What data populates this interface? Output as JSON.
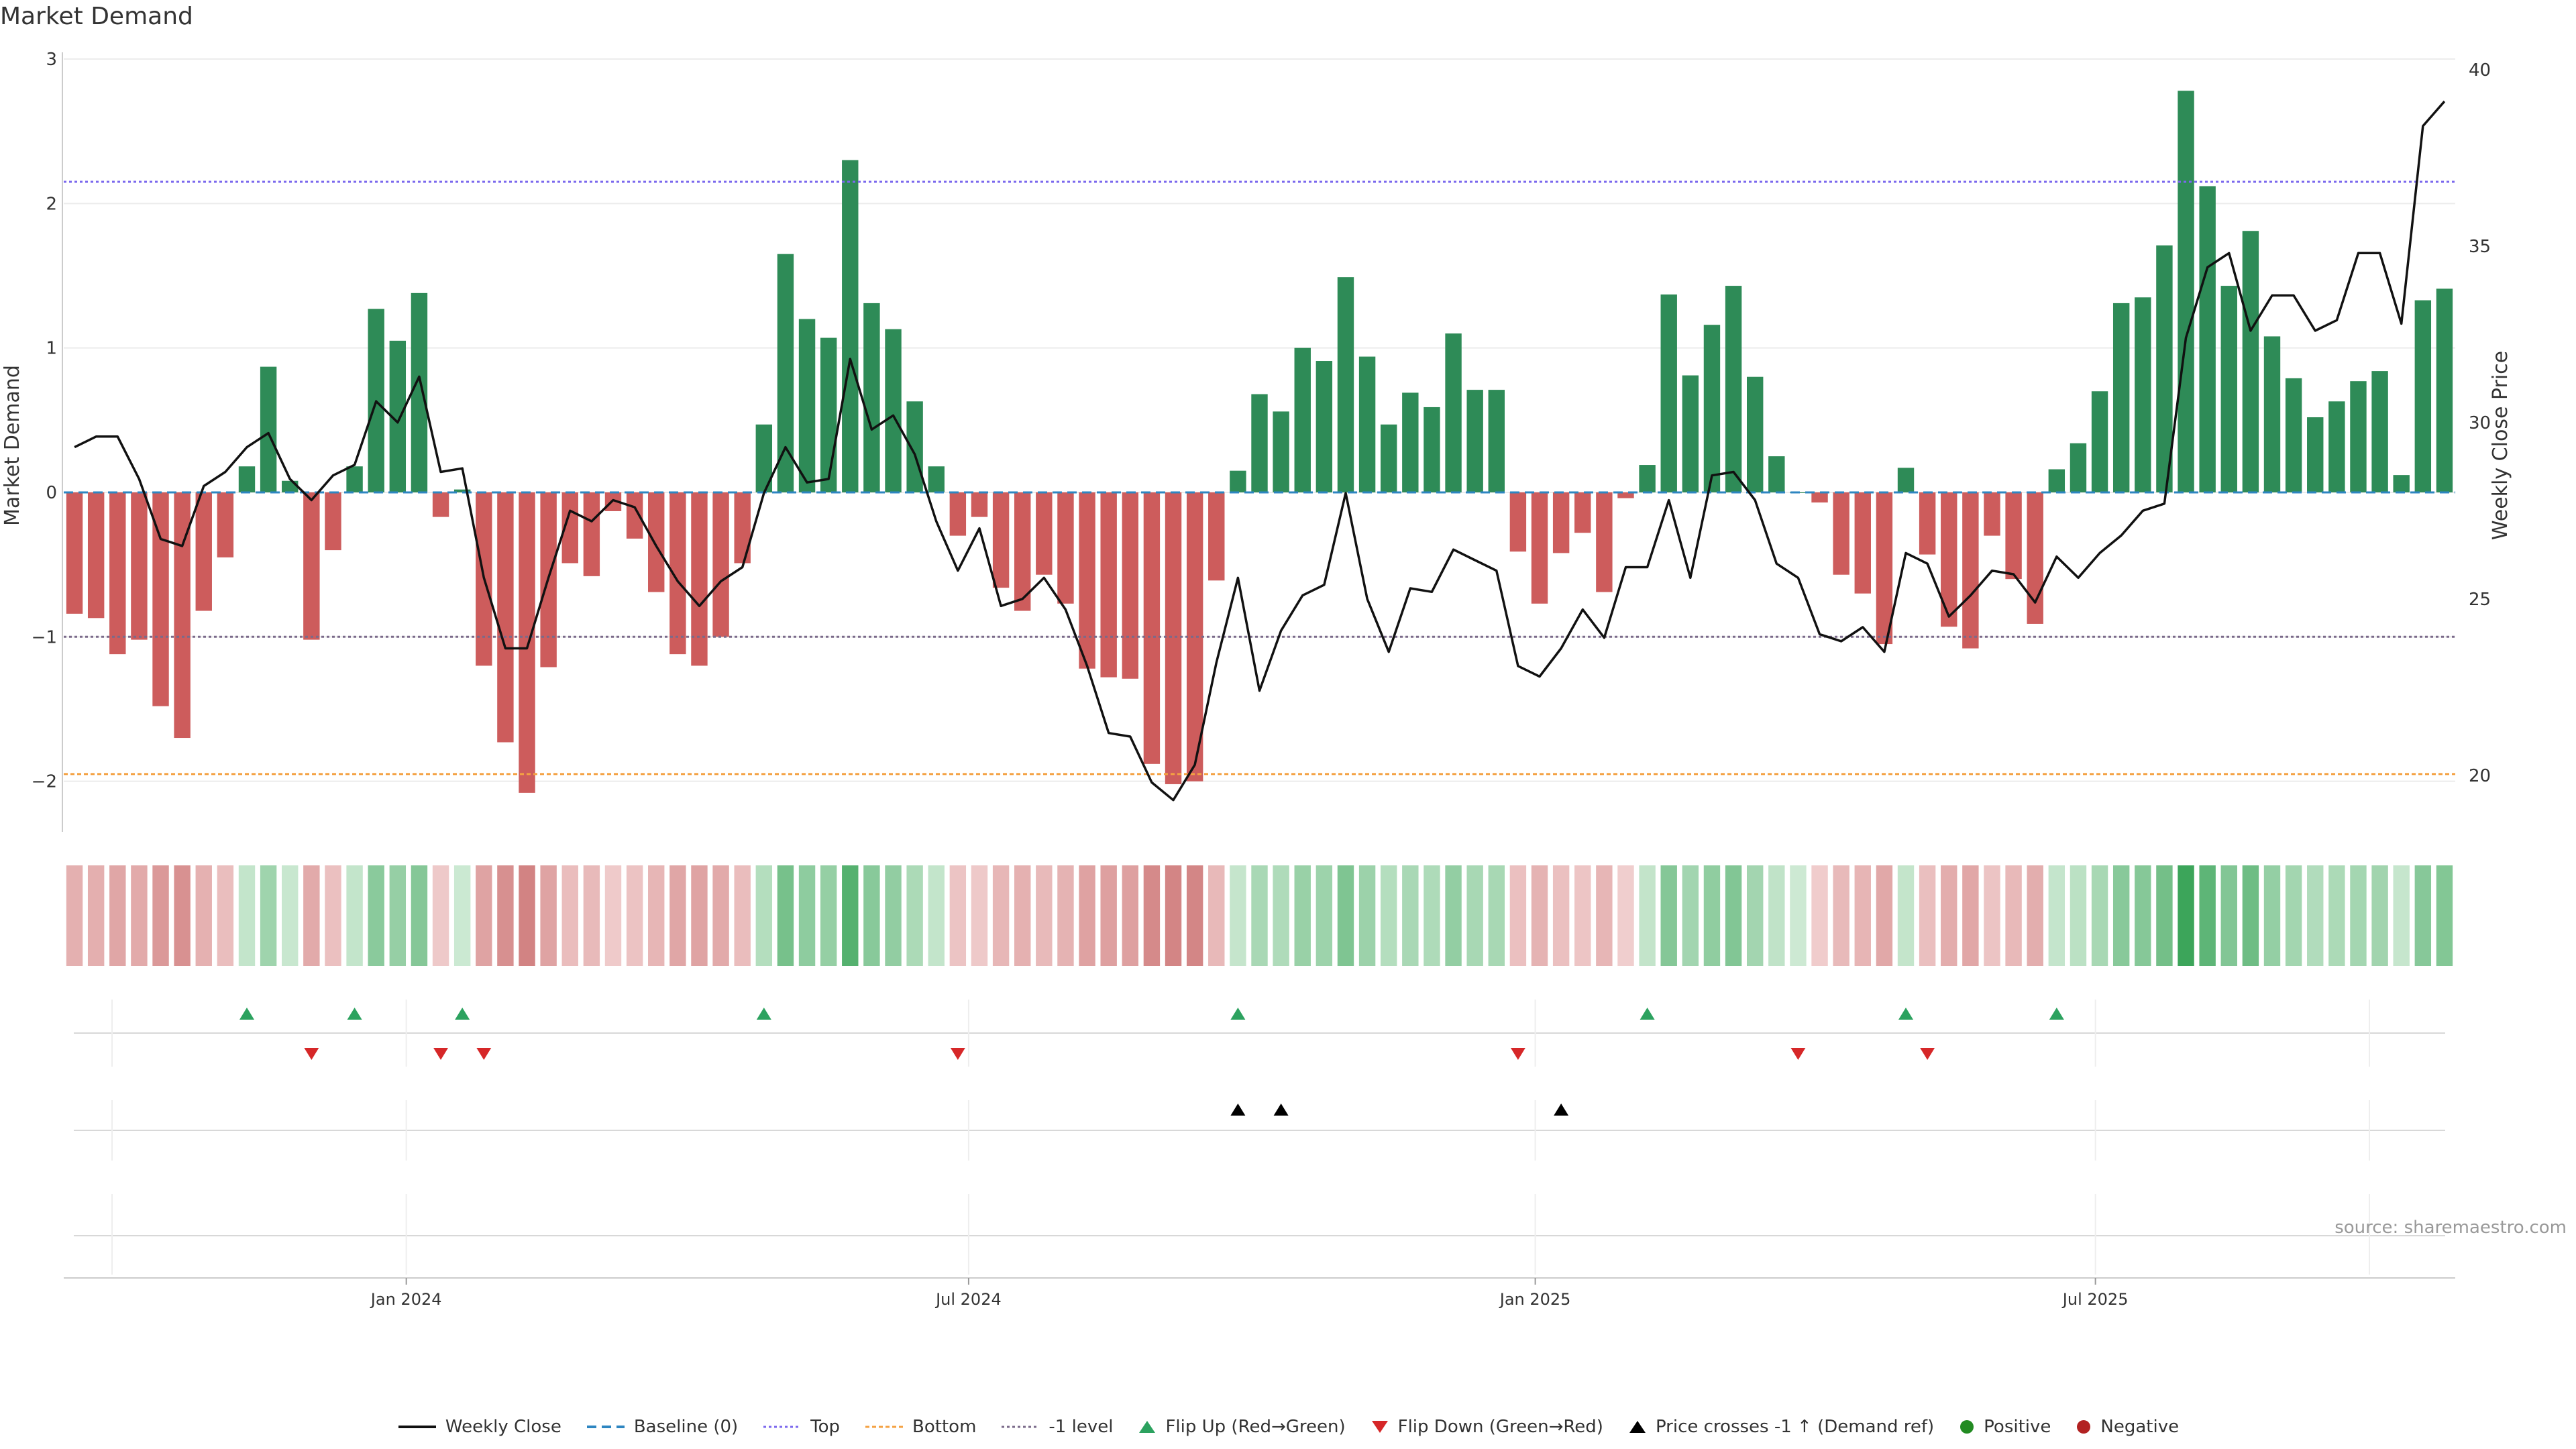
{
  "chart_data": {
    "type": "bar",
    "title": "Market Demand",
    "ylabel": "Market Demand",
    "y2label": "Weekly Close Price",
    "ylim": [
      -2.35,
      3.0
    ],
    "y2lim": [
      18.4,
      40.3
    ],
    "yticks": [
      3,
      2,
      1,
      0,
      -1,
      -2
    ],
    "ytick_labels": [
      "3",
      "2",
      "1",
      "0",
      "−1",
      "−2"
    ],
    "y2ticks": [
      40,
      35,
      30,
      25,
      20
    ],
    "y2tick_labels": [
      "40",
      "35",
      "30",
      "25",
      "20"
    ],
    "xticks": [
      {
        "label": "Jan 2024",
        "index": 15.4
      },
      {
        "label": "Jul 2024",
        "index": 41.5
      },
      {
        "label": "Jan 2025",
        "index": 67.8
      },
      {
        "label": "Jul 2025",
        "index": 93.8
      }
    ],
    "reference_lines": [
      {
        "name": "Top",
        "value": 2.15,
        "color": "#7b68ee",
        "dash": "4 4"
      },
      {
        "name": "Bottom",
        "value": -1.95,
        "color": "#f4a142",
        "dash": "6 4"
      },
      {
        "name": "-1 level",
        "value": -1.0,
        "color": "#7a6a8a",
        "dash": "4 4"
      },
      {
        "name": "Baseline (0)",
        "value": 0,
        "color": "#2e86c1",
        "dash": "14 8"
      }
    ],
    "demand": [
      -0.84,
      -0.87,
      -1.12,
      -1.02,
      -1.48,
      -1.7,
      -0.82,
      -0.45,
      0.18,
      0.87,
      0.08,
      -1.02,
      -0.4,
      0.18,
      1.27,
      1.05,
      1.38,
      -0.17,
      0.02,
      -1.2,
      -1.73,
      -2.08,
      -1.21,
      -0.49,
      -0.58,
      -0.13,
      -0.32,
      -0.69,
      -1.12,
      -1.2,
      -1.0,
      -0.49,
      0.47,
      1.65,
      1.2,
      1.07,
      2.3,
      1.31,
      1.13,
      0.63,
      0.18,
      -0.3,
      -0.17,
      -0.66,
      -0.82,
      -0.57,
      -0.77,
      -1.22,
      -1.28,
      -1.29,
      -1.88,
      -2.02,
      -2.0,
      -0.61,
      0.15,
      0.68,
      0.56,
      1.0,
      0.91,
      1.49,
      0.94,
      0.47,
      0.69,
      0.59,
      1.1,
      0.71,
      0.71,
      -0.41,
      -0.77,
      -0.42,
      -0.28,
      -0.69,
      -0.04,
      0.19,
      1.37,
      0.81,
      1.16,
      1.43,
      0.8,
      0.25,
      0.0,
      -0.07,
      -0.57,
      -0.7,
      -1.05,
      0.17,
      -0.43,
      -0.93,
      -1.08,
      -0.3,
      -0.6,
      -0.91,
      0.16,
      0.34,
      0.7,
      1.31,
      1.35,
      1.71,
      2.78,
      2.12,
      1.43,
      1.81,
      1.08,
      0.79,
      0.52,
      0.63,
      0.77,
      0.84,
      0.12,
      1.33,
      1.41
    ],
    "weekly_close": [
      29.3,
      29.6,
      29.6,
      28.4,
      26.7,
      26.5,
      28.2,
      28.6,
      29.3,
      29.7,
      28.4,
      27.8,
      28.5,
      28.8,
      30.6,
      30.0,
      31.3,
      28.6,
      28.7,
      25.6,
      23.6,
      23.6,
      25.6,
      27.5,
      27.2,
      27.8,
      27.6,
      26.5,
      25.5,
      24.8,
      25.5,
      25.9,
      28.0,
      29.3,
      28.3,
      28.4,
      31.8,
      29.8,
      30.2,
      29.1,
      27.2,
      25.8,
      27.0,
      24.8,
      25.0,
      25.6,
      24.7,
      23.1,
      21.2,
      21.1,
      19.8,
      19.3,
      20.3,
      23.2,
      25.6,
      22.4,
      24.1,
      25.1,
      25.4,
      28.0,
      25.0,
      23.5,
      25.3,
      25.2,
      26.4,
      26.1,
      25.8,
      23.1,
      22.8,
      23.6,
      24.7,
      23.9,
      25.9,
      25.9,
      27.8,
      25.6,
      28.5,
      28.6,
      27.8,
      26.0,
      25.6,
      24.0,
      23.8,
      24.2,
      23.5,
      26.3,
      26.0,
      24.5,
      25.1,
      25.8,
      25.7,
      24.9,
      26.2,
      25.6,
      26.3,
      26.8,
      27.5,
      27.7,
      32.4,
      34.4,
      34.8,
      32.6,
      33.6,
      33.6,
      32.6,
      32.9,
      34.8,
      34.8,
      32.8,
      38.4,
      39.1
    ],
    "flip_up_index": [
      8,
      13,
      18,
      32,
      54,
      73,
      85,
      92
    ],
    "flip_down_index": [
      11,
      17,
      19,
      41,
      67,
      80,
      86
    ],
    "price_cross_index": [
      54,
      56,
      69
    ],
    "colors": {
      "positive": "#2e8b57",
      "negative": "#cd5c5c",
      "price": "#111111",
      "flip_up": "#2ca25f",
      "flip_down": "#d62728",
      "cross": "#000000",
      "pos_dot": "#228b22",
      "neg_dot": "#b22222"
    }
  },
  "legend": [
    {
      "key": "weekly_close",
      "label": "Weekly Close"
    },
    {
      "key": "baseline",
      "label": "Baseline (0)"
    },
    {
      "key": "top",
      "label": "Top"
    },
    {
      "key": "bottom",
      "label": "Bottom"
    },
    {
      "key": "minus1",
      "label": "-1 level"
    },
    {
      "key": "flip_up",
      "label": "Flip Up (Red→Green)"
    },
    {
      "key": "flip_down",
      "label": "Flip Down (Green→Red)"
    },
    {
      "key": "cross",
      "label": "Price crosses -1 ↑ (Demand ref)"
    },
    {
      "key": "positive",
      "label": "Positive"
    },
    {
      "key": "negative",
      "label": "Negative"
    }
  ],
  "source": "source: sharemaestro.com"
}
